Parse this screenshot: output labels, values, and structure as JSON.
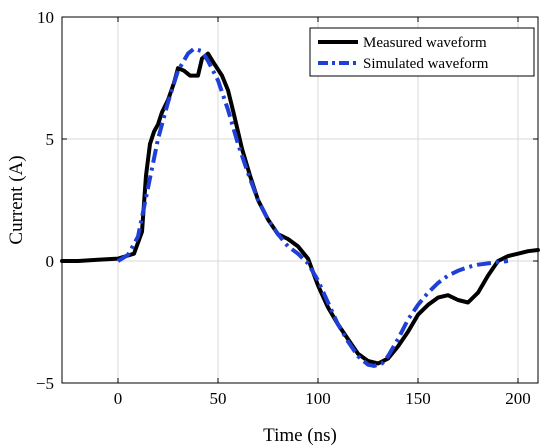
{
  "chart_data": {
    "type": "line",
    "title": "",
    "xlabel": "Time (ns)",
    "ylabel": "Current (A)",
    "xlim": [
      -28,
      210
    ],
    "ylim": [
      -5,
      10
    ],
    "xticks": [
      0,
      50,
      100,
      150,
      200
    ],
    "yticks": [
      -5,
      0,
      5,
      10
    ],
    "xtick_labels": [
      "0",
      "50",
      "100",
      "150",
      "200"
    ],
    "ytick_labels": [
      "−5",
      "0",
      "5",
      "10"
    ],
    "grid": true,
    "legend_position": "top-right",
    "series": [
      {
        "name": "Measured waveform",
        "color": "#000000",
        "style": "solid",
        "x": [
          -28,
          -20,
          -10,
          0,
          8,
          12,
          14,
          16,
          18,
          20,
          22,
          25,
          28,
          30,
          33,
          36,
          40,
          42,
          45,
          48,
          52,
          55,
          58,
          62,
          66,
          70,
          75,
          80,
          85,
          90,
          95,
          100,
          105,
          110,
          115,
          120,
          125,
          130,
          135,
          140,
          145,
          150,
          155,
          160,
          165,
          170,
          175,
          180,
          185,
          190,
          195,
          200,
          205,
          210
        ],
        "y": [
          0.0,
          0.0,
          0.05,
          0.1,
          0.3,
          1.2,
          3.5,
          4.8,
          5.3,
          5.6,
          6.1,
          6.6,
          7.3,
          7.9,
          7.8,
          7.6,
          7.6,
          8.3,
          8.5,
          8.1,
          7.6,
          7.0,
          6.0,
          4.6,
          3.5,
          2.5,
          1.7,
          1.1,
          0.9,
          0.6,
          0.1,
          -1.0,
          -1.9,
          -2.6,
          -3.2,
          -3.8,
          -4.1,
          -4.2,
          -4.0,
          -3.5,
          -2.9,
          -2.2,
          -1.8,
          -1.5,
          -1.4,
          -1.6,
          -1.7,
          -1.3,
          -0.6,
          0.0,
          0.2,
          0.3,
          0.4,
          0.45
        ]
      },
      {
        "name": "Simulated waveform",
        "color": "#1f3fd6",
        "style": "dash-dot",
        "x": [
          0,
          5,
          10,
          15,
          20,
          25,
          30,
          35,
          38,
          42,
          45,
          50,
          55,
          60,
          65,
          70,
          75,
          80,
          85,
          90,
          95,
          100,
          105,
          110,
          115,
          120,
          125,
          128,
          132,
          135,
          140,
          145,
          150,
          155,
          160,
          165,
          170,
          175,
          180,
          185,
          190,
          195
        ],
        "y": [
          0.0,
          0.25,
          1.0,
          3.0,
          5.0,
          6.5,
          7.8,
          8.5,
          8.7,
          8.6,
          8.2,
          7.4,
          6.2,
          4.8,
          3.6,
          2.5,
          1.7,
          1.1,
          0.6,
          0.3,
          -0.1,
          -0.8,
          -1.7,
          -2.6,
          -3.3,
          -3.9,
          -4.25,
          -4.3,
          -4.2,
          -3.9,
          -3.2,
          -2.4,
          -1.8,
          -1.3,
          -0.9,
          -0.6,
          -0.4,
          -0.25,
          -0.15,
          -0.1,
          -0.05,
          0.0
        ]
      }
    ]
  }
}
